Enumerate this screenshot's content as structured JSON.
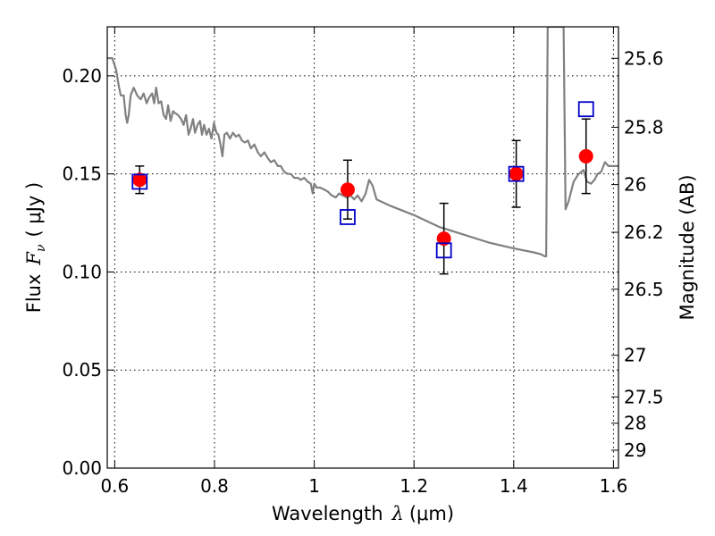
{
  "chart_data": {
    "type": "scatter",
    "xlabel_prefix": "Wavelength",
    "xlabel_var": "λ",
    "xlabel_unit": "(μm)",
    "ylabel_prefix": "Flux",
    "ylabel_var": "F",
    "ylabel_sub": "ν",
    "ylabel_unit": "( μJy )",
    "y2label": "Magnitude (AB)",
    "xlim": [
      0.585,
      1.61
    ],
    "ylim": [
      0.0,
      0.225
    ],
    "grid": true,
    "x_ticks": [
      0.6,
      0.8,
      1.0,
      1.2,
      1.4,
      1.6
    ],
    "x_tick_labels": [
      "0.6",
      "0.8",
      "1",
      "1.2",
      "1.4",
      "1.6"
    ],
    "y_ticks": [
      0.0,
      0.05,
      0.1,
      0.15,
      0.2
    ],
    "y_tick_labels": [
      "0.00",
      "0.05",
      "0.10",
      "0.15",
      "0.20"
    ],
    "y2_ticks": [
      25.6,
      25.8,
      26.0,
      26.2,
      26.5,
      27.0,
      27.5,
      28.0,
      29.0
    ],
    "y2_tick_labels": [
      "25.6",
      "25.8",
      "26",
      "26.2",
      "26.5",
      "27",
      "27.5",
      "28",
      "29"
    ],
    "series": [
      {
        "kind": "line",
        "color": "#808080",
        "x": [
          0.585,
          0.595,
          0.603,
          0.608,
          0.612,
          0.618,
          0.622,
          0.625,
          0.628,
          0.632,
          0.638,
          0.645,
          0.652,
          0.658,
          0.664,
          0.669,
          0.675,
          0.679,
          0.683,
          0.688,
          0.693,
          0.698,
          0.703,
          0.707,
          0.712,
          0.717,
          0.721,
          0.727,
          0.733,
          0.738,
          0.743,
          0.748,
          0.752,
          0.757,
          0.761,
          0.766,
          0.771,
          0.775,
          0.779,
          0.784,
          0.789,
          0.794,
          0.799,
          0.804,
          0.808,
          0.812,
          0.816,
          0.82,
          0.825,
          0.831,
          0.837,
          0.843,
          0.849,
          0.855,
          0.861,
          0.867,
          0.873,
          0.88,
          0.887,
          0.893,
          0.9,
          0.907,
          0.913,
          0.92,
          0.927,
          0.933,
          0.94,
          0.947,
          0.953,
          0.96,
          0.967,
          0.973,
          0.98,
          0.987,
          0.993,
          0.997,
          1.0,
          1.005,
          1.012,
          1.02,
          1.027,
          1.035,
          1.043,
          1.05,
          1.057,
          1.065,
          1.073,
          1.08,
          1.087,
          1.095,
          1.103,
          1.11,
          1.117,
          1.125,
          1.15,
          1.2,
          1.25,
          1.3,
          1.35,
          1.4,
          1.44,
          1.455,
          1.462,
          1.465,
          1.468,
          1.5,
          1.504,
          1.51,
          1.52,
          1.53,
          1.54,
          1.547,
          1.555,
          1.562,
          1.568,
          1.575,
          1.583,
          1.59,
          1.6,
          1.61
        ],
        "y": [
          0.209,
          0.209,
          0.203,
          0.195,
          0.19,
          0.19,
          0.18,
          0.176,
          0.18,
          0.19,
          0.194,
          0.19,
          0.188,
          0.191,
          0.186,
          0.189,
          0.191,
          0.186,
          0.194,
          0.186,
          0.187,
          0.18,
          0.178,
          0.185,
          0.177,
          0.182,
          0.181,
          0.18,
          0.178,
          0.175,
          0.18,
          0.17,
          0.173,
          0.178,
          0.171,
          0.175,
          0.177,
          0.17,
          0.175,
          0.17,
          0.173,
          0.168,
          0.176,
          0.171,
          0.17,
          0.165,
          0.159,
          0.17,
          0.171,
          0.168,
          0.171,
          0.169,
          0.17,
          0.167,
          0.166,
          0.167,
          0.163,
          0.165,
          0.161,
          0.159,
          0.161,
          0.158,
          0.156,
          0.157,
          0.154,
          0.154,
          0.151,
          0.15,
          0.15,
          0.148,
          0.148,
          0.147,
          0.148,
          0.146,
          0.145,
          0.14,
          0.145,
          0.143,
          0.143,
          0.142,
          0.141,
          0.139,
          0.138,
          0.14,
          0.139,
          0.138,
          0.139,
          0.137,
          0.139,
          0.136,
          0.14,
          0.147,
          0.144,
          0.137,
          0.134,
          0.129,
          0.123,
          0.119,
          0.115,
          0.112,
          0.11,
          0.109,
          0.108,
          0.108,
          0.225,
          0.225,
          0.132,
          0.136,
          0.146,
          0.15,
          0.152,
          0.146,
          0.145,
          0.147,
          0.15,
          0.151,
          0.156,
          0.154,
          0.154,
          0.154
        ]
      },
      {
        "kind": "points",
        "marker": "circle",
        "color": "#ff0000",
        "x": [
          0.65,
          1.067,
          1.26,
          1.405,
          1.545
        ],
        "y": [
          0.147,
          0.142,
          0.117,
          0.15,
          0.159
        ],
        "yerr": [
          0.007,
          0.015,
          0.018,
          0.017,
          0.019
        ]
      },
      {
        "kind": "points",
        "marker": "open-square",
        "color": "#0000cc",
        "x": [
          0.65,
          1.067,
          1.26,
          1.405,
          1.545
        ],
        "y": [
          0.146,
          0.128,
          0.111,
          0.15,
          0.183
        ]
      }
    ]
  }
}
